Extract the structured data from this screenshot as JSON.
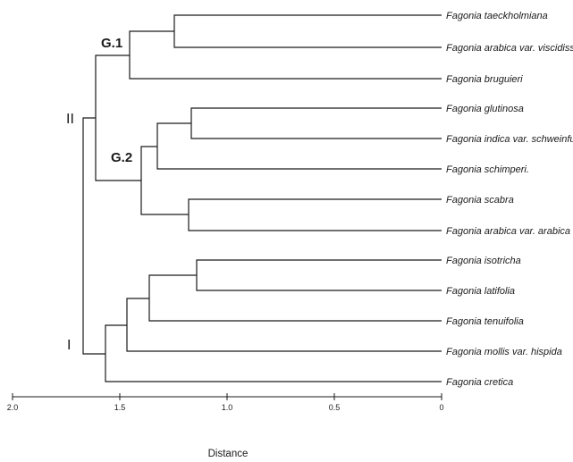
{
  "diagram": {
    "type": "dendrogram",
    "axis_title": "Distance",
    "axis_ticks": [
      "2.0",
      "1.5",
      "1.0",
      "0.5",
      "0"
    ],
    "leaves": [
      "Fagonia taeckholmiana",
      "Fagonia arabica var. viscidissima",
      "Fagonia bruguieri",
      "Fagonia glutinosa",
      "Fagonia indica var. schweinfurthii",
      "Fagonia schimperi.",
      "Fagonia scabra",
      "Fagonia arabica var. arabica",
      "Fagonia isotricha",
      "Fagonia latifolia",
      "Fagonia tenuifolia",
      "Fagonia mollis  var. hispida",
      "Fagonia cretica"
    ],
    "cluster_labels": {
      "cluster_I": "I",
      "cluster_II": "II",
      "group_1": "G.1",
      "group_2": "G.2"
    },
    "merge_heights": {
      "taeckholmiana_viscidissima": 1.25,
      "g1_with_bruguieri": 1.46,
      "glutinosa_indica": 1.17,
      "with_schimperi": 1.33,
      "scabra_arabica": 1.18,
      "group_2": 1.41,
      "group_1_group_2": 1.61,
      "isotricha_latifolia": 1.15,
      "with_tenuifolia": 1.37,
      "with_mollis": 1.47,
      "with_cretica": 1.58,
      "root": 1.69
    }
  }
}
